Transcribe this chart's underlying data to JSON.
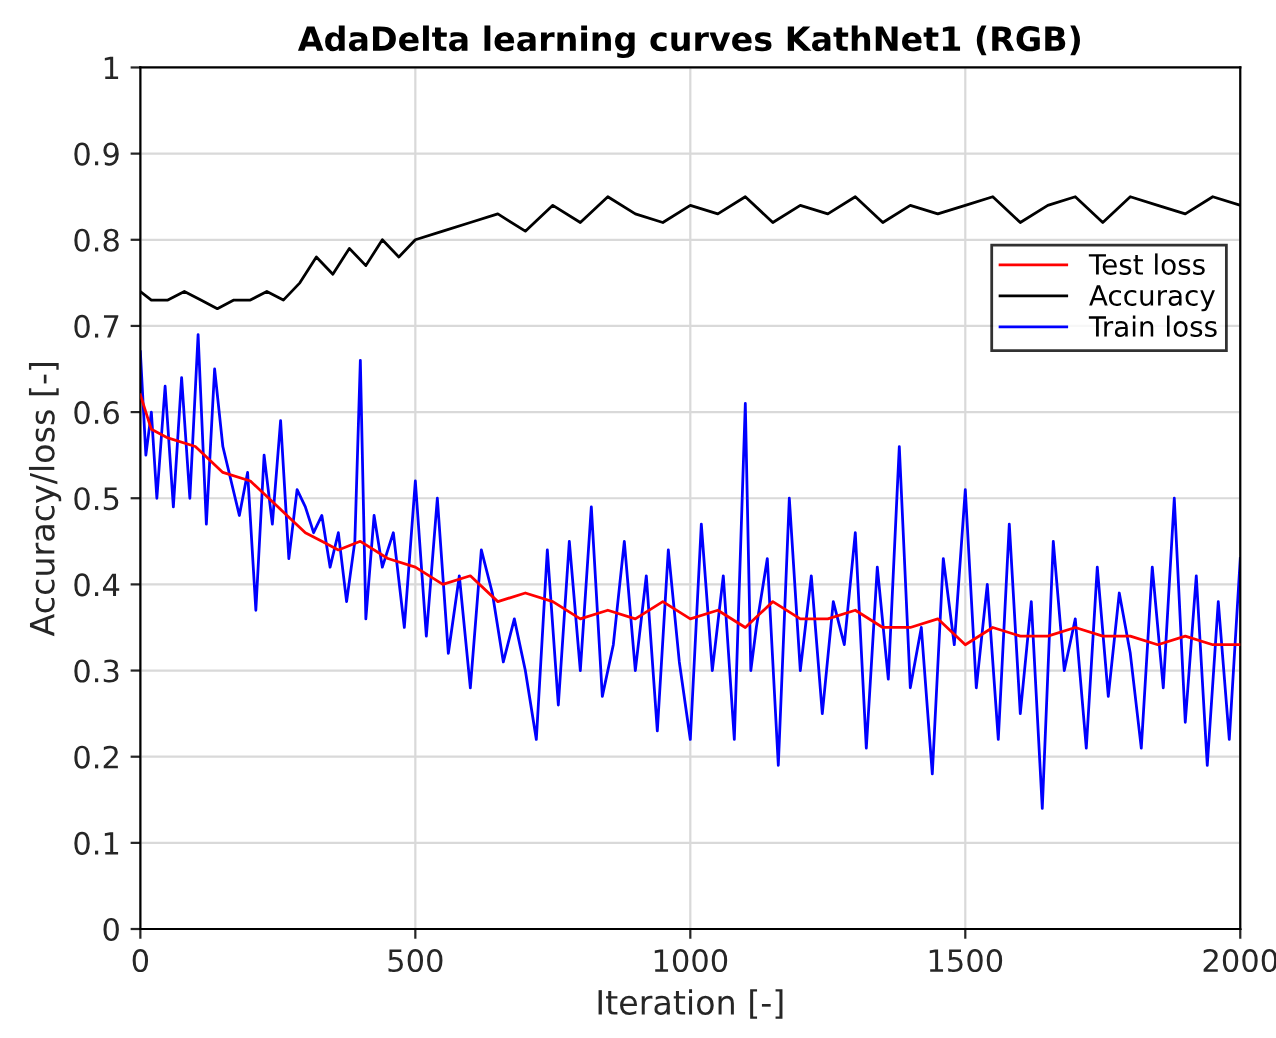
{
  "chart_data": {
    "type": "line",
    "title": "AdaDelta learning curves KathNet1 (RGB)",
    "xlabel": "Iteration [-]",
    "ylabel": "Accuracy/loss [-]",
    "xlim": [
      0,
      2000
    ],
    "ylim": [
      0,
      1
    ],
    "xticks": [
      0,
      500,
      1000,
      1500,
      2000
    ],
    "yticks": [
      0,
      0.1,
      0.2,
      0.3,
      0.4,
      0.5,
      0.6,
      0.7,
      0.8,
      0.9,
      1
    ],
    "grid": true,
    "legend": "top right",
    "series": [
      {
        "name": "Test loss",
        "color": "#ff0000",
        "x": [
          0,
          20,
          50,
          100,
          150,
          200,
          250,
          300,
          330,
          360,
          400,
          450,
          500,
          550,
          600,
          650,
          700,
          750,
          800,
          850,
          900,
          950,
          1000,
          1050,
          1100,
          1150,
          1200,
          1250,
          1300,
          1350,
          1400,
          1450,
          1500,
          1550,
          1600,
          1650,
          1700,
          1750,
          1800,
          1850,
          1900,
          1950,
          2000
        ],
        "values": [
          0.62,
          0.58,
          0.57,
          0.56,
          0.53,
          0.52,
          0.49,
          0.46,
          0.45,
          0.44,
          0.45,
          0.43,
          0.42,
          0.4,
          0.41,
          0.38,
          0.39,
          0.38,
          0.36,
          0.37,
          0.36,
          0.38,
          0.36,
          0.37,
          0.35,
          0.38,
          0.36,
          0.36,
          0.37,
          0.35,
          0.35,
          0.36,
          0.33,
          0.35,
          0.34,
          0.34,
          0.35,
          0.34,
          0.34,
          0.33,
          0.34,
          0.33,
          0.33
        ]
      },
      {
        "name": "Accuracy",
        "color": "#000000",
        "x": [
          0,
          20,
          50,
          80,
          110,
          140,
          170,
          200,
          230,
          260,
          290,
          320,
          350,
          380,
          410,
          440,
          470,
          500,
          550,
          600,
          650,
          700,
          750,
          800,
          850,
          900,
          950,
          1000,
          1050,
          1100,
          1150,
          1200,
          1250,
          1300,
          1350,
          1400,
          1450,
          1500,
          1550,
          1600,
          1650,
          1700,
          1750,
          1800,
          1850,
          1900,
          1950,
          2000
        ],
        "values": [
          0.74,
          0.73,
          0.73,
          0.74,
          0.73,
          0.72,
          0.73,
          0.73,
          0.74,
          0.73,
          0.75,
          0.78,
          0.76,
          0.79,
          0.77,
          0.8,
          0.78,
          0.8,
          0.81,
          0.82,
          0.83,
          0.81,
          0.84,
          0.82,
          0.85,
          0.83,
          0.82,
          0.84,
          0.83,
          0.85,
          0.82,
          0.84,
          0.83,
          0.85,
          0.82,
          0.84,
          0.83,
          0.84,
          0.85,
          0.82,
          0.84,
          0.85,
          0.82,
          0.85,
          0.84,
          0.83,
          0.85,
          0.84
        ]
      },
      {
        "name": "Train loss",
        "color": "#0000ff",
        "x": [
          0,
          10,
          20,
          30,
          45,
          60,
          75,
          90,
          105,
          120,
          135,
          150,
          165,
          180,
          195,
          210,
          225,
          240,
          255,
          270,
          285,
          300,
          315,
          330,
          345,
          360,
          375,
          390,
          400,
          410,
          425,
          440,
          460,
          480,
          500,
          520,
          540,
          560,
          580,
          600,
          620,
          640,
          660,
          680,
          700,
          720,
          740,
          760,
          780,
          800,
          820,
          840,
          860,
          880,
          900,
          920,
          940,
          960,
          980,
          1000,
          1020,
          1040,
          1060,
          1080,
          1100,
          1110,
          1120,
          1140,
          1160,
          1180,
          1200,
          1220,
          1240,
          1260,
          1280,
          1300,
          1320,
          1340,
          1360,
          1380,
          1400,
          1420,
          1440,
          1460,
          1480,
          1500,
          1520,
          1540,
          1560,
          1580,
          1600,
          1620,
          1640,
          1660,
          1680,
          1700,
          1720,
          1740,
          1760,
          1780,
          1800,
          1820,
          1840,
          1860,
          1880,
          1900,
          1920,
          1940,
          1960,
          1980,
          2000
        ],
        "values": [
          0.67,
          0.55,
          0.6,
          0.5,
          0.63,
          0.49,
          0.64,
          0.5,
          0.69,
          0.47,
          0.65,
          0.56,
          0.52,
          0.48,
          0.53,
          0.37,
          0.55,
          0.47,
          0.59,
          0.43,
          0.51,
          0.49,
          0.46,
          0.48,
          0.42,
          0.46,
          0.38,
          0.45,
          0.66,
          0.36,
          0.48,
          0.42,
          0.46,
          0.35,
          0.52,
          0.34,
          0.5,
          0.32,
          0.41,
          0.28,
          0.44,
          0.39,
          0.31,
          0.36,
          0.3,
          0.22,
          0.44,
          0.26,
          0.45,
          0.3,
          0.49,
          0.27,
          0.33,
          0.45,
          0.3,
          0.41,
          0.23,
          0.44,
          0.31,
          0.22,
          0.47,
          0.3,
          0.41,
          0.22,
          0.61,
          0.3,
          0.35,
          0.43,
          0.19,
          0.5,
          0.3,
          0.41,
          0.25,
          0.38,
          0.33,
          0.46,
          0.21,
          0.42,
          0.29,
          0.56,
          0.28,
          0.35,
          0.18,
          0.43,
          0.33,
          0.51,
          0.28,
          0.4,
          0.22,
          0.47,
          0.25,
          0.38,
          0.14,
          0.45,
          0.3,
          0.36,
          0.21,
          0.42,
          0.27,
          0.39,
          0.32,
          0.21,
          0.42,
          0.28,
          0.5,
          0.24,
          0.41,
          0.19,
          0.38,
          0.22,
          0.43
        ]
      }
    ]
  }
}
